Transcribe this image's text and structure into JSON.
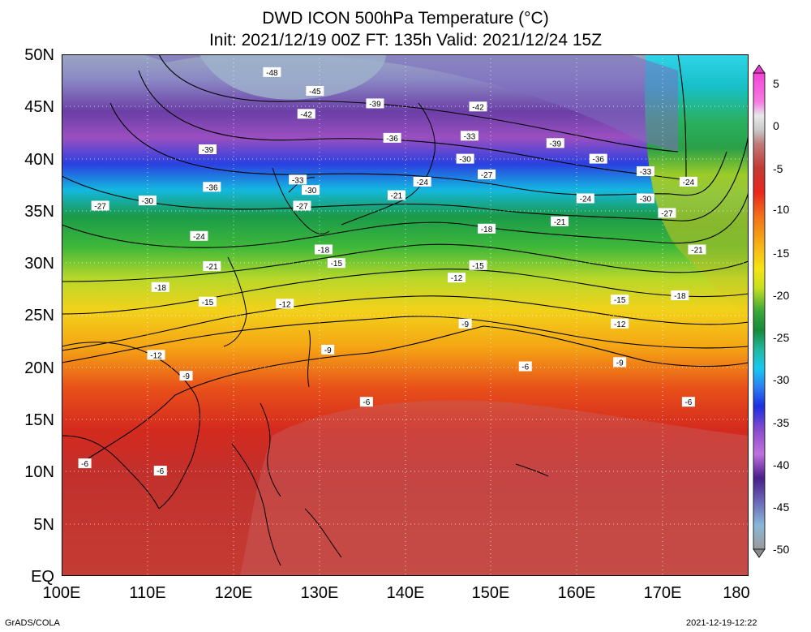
{
  "title": {
    "line1": "DWD ICON 500hPa Temperature (°C)",
    "line2": "Init: 2021/12/19 00Z  FT: 135h  Valid: 2021/12/24 15Z"
  },
  "axes": {
    "latitude_labels": [
      "50N",
      "45N",
      "40N",
      "35N",
      "30N",
      "25N",
      "20N",
      "15N",
      "10N",
      "5N",
      "EQ"
    ],
    "longitude_labels": [
      "100E",
      "110E",
      "120E",
      "130E",
      "140E",
      "150E",
      "160E",
      "170E",
      "180"
    ],
    "lat_range": [
      0,
      50
    ],
    "lon_range": [
      100,
      180
    ]
  },
  "colorbar": {
    "labels": [
      "5",
      "0",
      "-5",
      "-10",
      "-15",
      "-20",
      "-25",
      "-30",
      "-35",
      "-40",
      "-45",
      "-50"
    ],
    "range": [
      -50,
      5
    ],
    "unit": "°C"
  },
  "contour_labels": [
    {
      "text": "-48",
      "lon": 124.5,
      "lat": 48.3
    },
    {
      "text": "-45",
      "lon": 129.5,
      "lat": 46.5
    },
    {
      "text": "-42",
      "lon": 128.5,
      "lat": 44.3
    },
    {
      "text": "-39",
      "lon": 136.5,
      "lat": 45.3
    },
    {
      "text": "-42",
      "lon": 148.5,
      "lat": 45.0
    },
    {
      "text": "-36",
      "lon": 138.5,
      "lat": 42.0
    },
    {
      "text": "-33",
      "lon": 147.5,
      "lat": 42.2
    },
    {
      "text": "-39",
      "lon": 157.5,
      "lat": 41.5
    },
    {
      "text": "-39",
      "lon": 117,
      "lat": 40.9
    },
    {
      "text": "-36",
      "lon": 162.5,
      "lat": 40.0
    },
    {
      "text": "-30",
      "lon": 147,
      "lat": 40.0
    },
    {
      "text": "-33",
      "lon": 168,
      "lat": 38.8
    },
    {
      "text": "-27",
      "lon": 149.5,
      "lat": 38.5
    },
    {
      "text": "-33",
      "lon": 127.5,
      "lat": 38.0
    },
    {
      "text": "-24",
      "lon": 142,
      "lat": 37.8
    },
    {
      "text": "-24",
      "lon": 173,
      "lat": 37.8
    },
    {
      "text": "-36",
      "lon": 117.5,
      "lat": 37.3
    },
    {
      "text": "-30",
      "lon": 129,
      "lat": 37.0
    },
    {
      "text": "-21",
      "lon": 139,
      "lat": 36.5
    },
    {
      "text": "-24",
      "lon": 161,
      "lat": 36.2
    },
    {
      "text": "-30",
      "lon": 168,
      "lat": 36.2
    },
    {
      "text": "-30",
      "lon": 110,
      "lat": 36.0
    },
    {
      "text": "-27",
      "lon": 104.5,
      "lat": 35.5
    },
    {
      "text": "-27",
      "lon": 128,
      "lat": 35.5
    },
    {
      "text": "-27",
      "lon": 170.5,
      "lat": 34.8
    },
    {
      "text": "-21",
      "lon": 158,
      "lat": 34.0
    },
    {
      "text": "-18",
      "lon": 149.5,
      "lat": 33.3
    },
    {
      "text": "-24",
      "lon": 116,
      "lat": 32.6
    },
    {
      "text": "-21",
      "lon": 174,
      "lat": 31.3
    },
    {
      "text": "-18",
      "lon": 130.5,
      "lat": 31.3
    },
    {
      "text": "-15",
      "lon": 132,
      "lat": 30.0
    },
    {
      "text": "-15",
      "lon": 148.5,
      "lat": 29.8
    },
    {
      "text": "-21",
      "lon": 117.5,
      "lat": 29.7
    },
    {
      "text": "-12",
      "lon": 146,
      "lat": 28.6
    },
    {
      "text": "-18",
      "lon": 111.5,
      "lat": 27.7
    },
    {
      "text": "-18",
      "lon": 172,
      "lat": 26.9
    },
    {
      "text": "-15",
      "lon": 117,
      "lat": 26.3
    },
    {
      "text": "-12",
      "lon": 126,
      "lat": 26.1
    },
    {
      "text": "-15",
      "lon": 165,
      "lat": 26.5
    },
    {
      "text": "-9",
      "lon": 147,
      "lat": 24.2
    },
    {
      "text": "-12",
      "lon": 165,
      "lat": 24.2
    },
    {
      "text": "-9",
      "lon": 131,
      "lat": 21.7
    },
    {
      "text": "-12",
      "lon": 111,
      "lat": 21.2
    },
    {
      "text": "-9",
      "lon": 165,
      "lat": 20.5
    },
    {
      "text": "-6",
      "lon": 154,
      "lat": 20.1
    },
    {
      "text": "-9",
      "lon": 114.5,
      "lat": 19.2
    },
    {
      "text": "-6",
      "lon": 135.5,
      "lat": 16.7
    },
    {
      "text": "-6",
      "lon": 173,
      "lat": 16.7
    },
    {
      "text": "-6",
      "lon": 102.7,
      "lat": 10.8
    },
    {
      "text": "-6",
      "lon": 111.5,
      "lat": 10.1
    }
  ],
  "footer": {
    "left": "GrADS/COLA",
    "right": "2021-12-19-12:22"
  }
}
